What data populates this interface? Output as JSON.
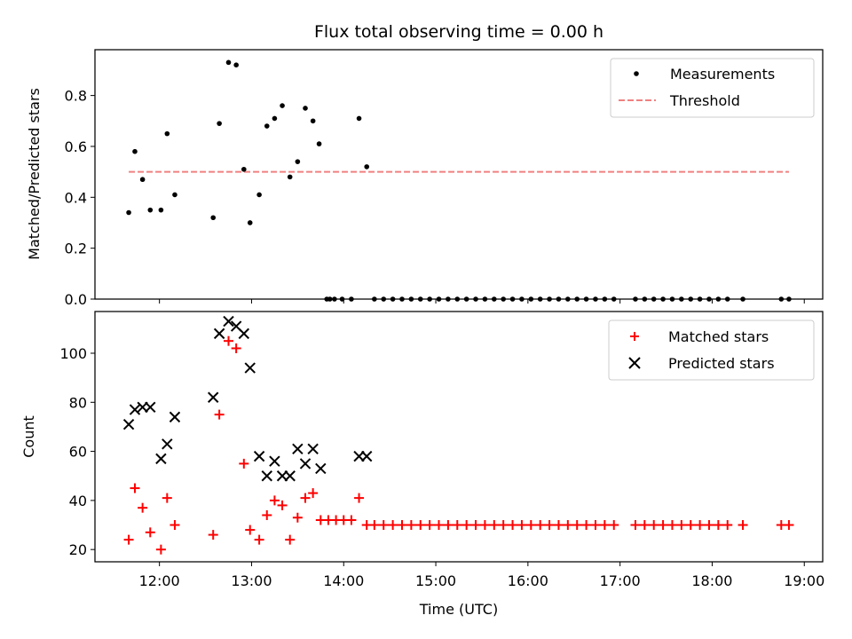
{
  "colors": {
    "measurement": "#000000",
    "threshold": "#f08080",
    "matched": "#ff0000",
    "predicted": "#000000"
  },
  "chart_data": [
    {
      "type": "scatter",
      "title": "Flux total observing time = 0.00 h",
      "xlabel": "",
      "ylabel": "Matched/Predicted stars",
      "xlim": [
        "11:18",
        "19:12"
      ],
      "ylim": [
        0,
        0.98
      ],
      "yticks": [
        0.0,
        0.2,
        0.4,
        0.6,
        0.8
      ],
      "ytick_labels": [
        "0.0",
        "0.2",
        "0.4",
        "0.6",
        "0.8"
      ],
      "legend_position": "top-right",
      "series": [
        {
          "name": "Measurements",
          "marker": "dot",
          "x": [
            "11:40",
            "11:44",
            "11:49",
            "11:54",
            "12:01",
            "12:05",
            "12:10",
            "12:35",
            "12:39",
            "12:45",
            "12:50",
            "12:55",
            "12:59",
            "13:05",
            "13:10",
            "13:15",
            "13:20",
            "13:25",
            "13:30",
            "13:35",
            "13:40",
            "13:44",
            "13:49",
            "13:51",
            "13:54",
            "13:59",
            "14:05",
            "14:10",
            "14:15",
            "14:20",
            "14:26",
            "14:32",
            "14:38",
            "14:44",
            "14:50",
            "14:56",
            "15:02",
            "15:08",
            "15:14",
            "15:20",
            "15:26",
            "15:32",
            "15:38",
            "15:44",
            "15:50",
            "15:56",
            "16:02",
            "16:08",
            "16:14",
            "16:20",
            "16:26",
            "16:32",
            "16:38",
            "16:44",
            "16:50",
            "16:56",
            "17:10",
            "17:16",
            "17:22",
            "17:28",
            "17:34",
            "17:40",
            "17:46",
            "17:52",
            "17:58",
            "18:04",
            "18:10",
            "18:20",
            "18:45",
            "18:50"
          ],
          "y": [
            0.34,
            0.58,
            0.47,
            0.35,
            0.35,
            0.65,
            0.41,
            0.32,
            0.69,
            0.93,
            0.92,
            0.51,
            0.3,
            0.41,
            0.68,
            0.71,
            0.76,
            0.48,
            0.54,
            0.75,
            0.7,
            0.61,
            0.0,
            0.0,
            0.0,
            0.0,
            0.0,
            0.71,
            0.52,
            0,
            0,
            0,
            0,
            0,
            0,
            0,
            0,
            0,
            0,
            0,
            0,
            0,
            0,
            0,
            0,
            0,
            0,
            0,
            0,
            0,
            0,
            0,
            0,
            0,
            0,
            0,
            0,
            0,
            0,
            0,
            0,
            0,
            0,
            0,
            0,
            0,
            0,
            0,
            0,
            0
          ]
        },
        {
          "name": "Threshold",
          "style": "dashed",
          "x": [
            "11:40",
            "18:50"
          ],
          "y": [
            0.5,
            0.5
          ]
        }
      ]
    },
    {
      "type": "scatter",
      "title": "",
      "xlabel": "Time (UTC)",
      "ylabel": "Count",
      "xlim": [
        "11:18",
        "19:12"
      ],
      "ylim": [
        15,
        117
      ],
      "xticks": [
        "12:00",
        "13:00",
        "14:00",
        "15:00",
        "16:00",
        "17:00",
        "18:00",
        "19:00"
      ],
      "yticks": [
        20,
        40,
        60,
        80,
        100
      ],
      "ytick_labels": [
        "20",
        "40",
        "60",
        "80",
        "100"
      ],
      "legend_position": "top-right",
      "series": [
        {
          "name": "Matched stars",
          "marker": "plus",
          "x": [
            "11:40",
            "11:44",
            "11:49",
            "11:54",
            "12:01",
            "12:05",
            "12:10",
            "12:35",
            "12:39",
            "12:45",
            "12:50",
            "12:55",
            "12:59",
            "13:05",
            "13:10",
            "13:15",
            "13:20",
            "13:25",
            "13:30",
            "13:35",
            "13:40",
            "13:45",
            "13:50",
            "13:55",
            "14:00",
            "14:05",
            "14:10",
            "14:15",
            "14:20",
            "14:26",
            "14:32",
            "14:38",
            "14:44",
            "14:50",
            "14:56",
            "15:02",
            "15:08",
            "15:14",
            "15:20",
            "15:26",
            "15:32",
            "15:38",
            "15:44",
            "15:50",
            "15:56",
            "16:02",
            "16:08",
            "16:14",
            "16:20",
            "16:26",
            "16:32",
            "16:38",
            "16:44",
            "16:50",
            "16:56",
            "17:10",
            "17:16",
            "17:22",
            "17:28",
            "17:34",
            "17:40",
            "17:46",
            "17:52",
            "17:58",
            "18:04",
            "18:10",
            "18:20",
            "18:45",
            "18:50"
          ],
          "y": [
            24,
            45,
            37,
            27,
            20,
            41,
            30,
            26,
            75,
            105,
            102,
            55,
            28,
            24,
            34,
            40,
            38,
            24,
            33,
            41,
            43,
            32,
            32,
            32,
            32,
            32,
            41,
            30,
            30,
            30,
            30,
            30,
            30,
            30,
            30,
            30,
            30,
            30,
            30,
            30,
            30,
            30,
            30,
            30,
            30,
            30,
            30,
            30,
            30,
            30,
            30,
            30,
            30,
            30,
            30,
            30,
            30,
            30,
            30,
            30,
            30,
            30,
            30,
            30,
            30,
            30,
            30,
            30,
            30
          ]
        },
        {
          "name": "Predicted stars",
          "marker": "x",
          "x": [
            "11:40",
            "11:44",
            "11:49",
            "11:54",
            "12:01",
            "12:05",
            "12:10",
            "12:35",
            "12:39",
            "12:45",
            "12:50",
            "12:55",
            "12:59",
            "13:05",
            "13:10",
            "13:15",
            "13:20",
            "13:25",
            "13:30",
            "13:35",
            "13:40",
            "13:45",
            "14:10",
            "14:15"
          ],
          "y": [
            71,
            77,
            78,
            78,
            57,
            63,
            74,
            82,
            108,
            113,
            111,
            108,
            94,
            58,
            50,
            56,
            50,
            50,
            61,
            55,
            61,
            53,
            58,
            58
          ]
        }
      ]
    }
  ]
}
